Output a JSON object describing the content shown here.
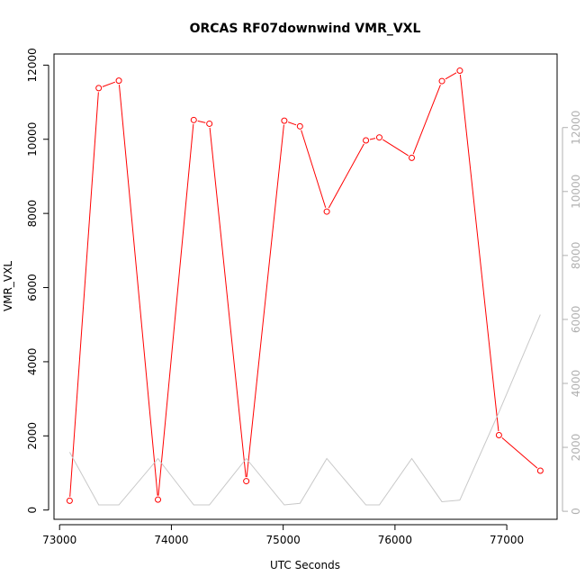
{
  "chart_data": {
    "type": "line",
    "title": "ORCAS RF07downwind VMR_VXL",
    "xlabel": "UTC Seconds",
    "ylabel": "VMR_VXL",
    "xlim": [
      72950,
      77450
    ],
    "ylim_left": [
      -250,
      12300
    ],
    "ylim_right": [
      -250,
      14300
    ],
    "x_ticks": [
      73000,
      74000,
      75000,
      76000,
      77000
    ],
    "x_tick_labels": [
      "73000",
      "74000",
      "75000",
      "76000",
      "77000"
    ],
    "y_ticks_left": [
      0,
      2000,
      4000,
      6000,
      8000,
      10000,
      12000
    ],
    "y_tick_labels_left": [
      "0",
      "2000",
      "4000",
      "6000",
      "8000",
      "10000",
      "12000"
    ],
    "y_ticks_right": [
      0,
      2000,
      4000,
      6000,
      8000,
      10000,
      12000
    ],
    "y_tick_labels_right": [
      "0",
      "2000",
      "4000",
      "6000",
      "8000",
      "10000",
      "12000"
    ],
    "series": [
      {
        "axis": "left",
        "color": "#ff0000",
        "markers": true,
        "x": [
          73090,
          73350,
          73530,
          73880,
          74200,
          74340,
          74670,
          75010,
          75150,
          75390,
          75740,
          75860,
          76150,
          76420,
          76580,
          76930,
          77300
        ],
        "y": [
          250,
          11380,
          11580,
          280,
          10520,
          10420,
          780,
          10500,
          10350,
          8050,
          9970,
          10050,
          9500,
          11570,
          11850,
          2020,
          1060
        ]
      },
      {
        "axis": "right",
        "color": "#c8c8c8",
        "markers": false,
        "x": [
          73090,
          73350,
          73530,
          73880,
          74200,
          74340,
          74670,
          75010,
          75150,
          75390,
          75740,
          75860,
          76150,
          76420,
          76580,
          76930,
          77300
        ],
        "y": [
          1850,
          200,
          200,
          1650,
          200,
          200,
          1650,
          200,
          250,
          1650,
          200,
          200,
          1650,
          300,
          350,
          3100,
          6150
        ]
      }
    ]
  }
}
